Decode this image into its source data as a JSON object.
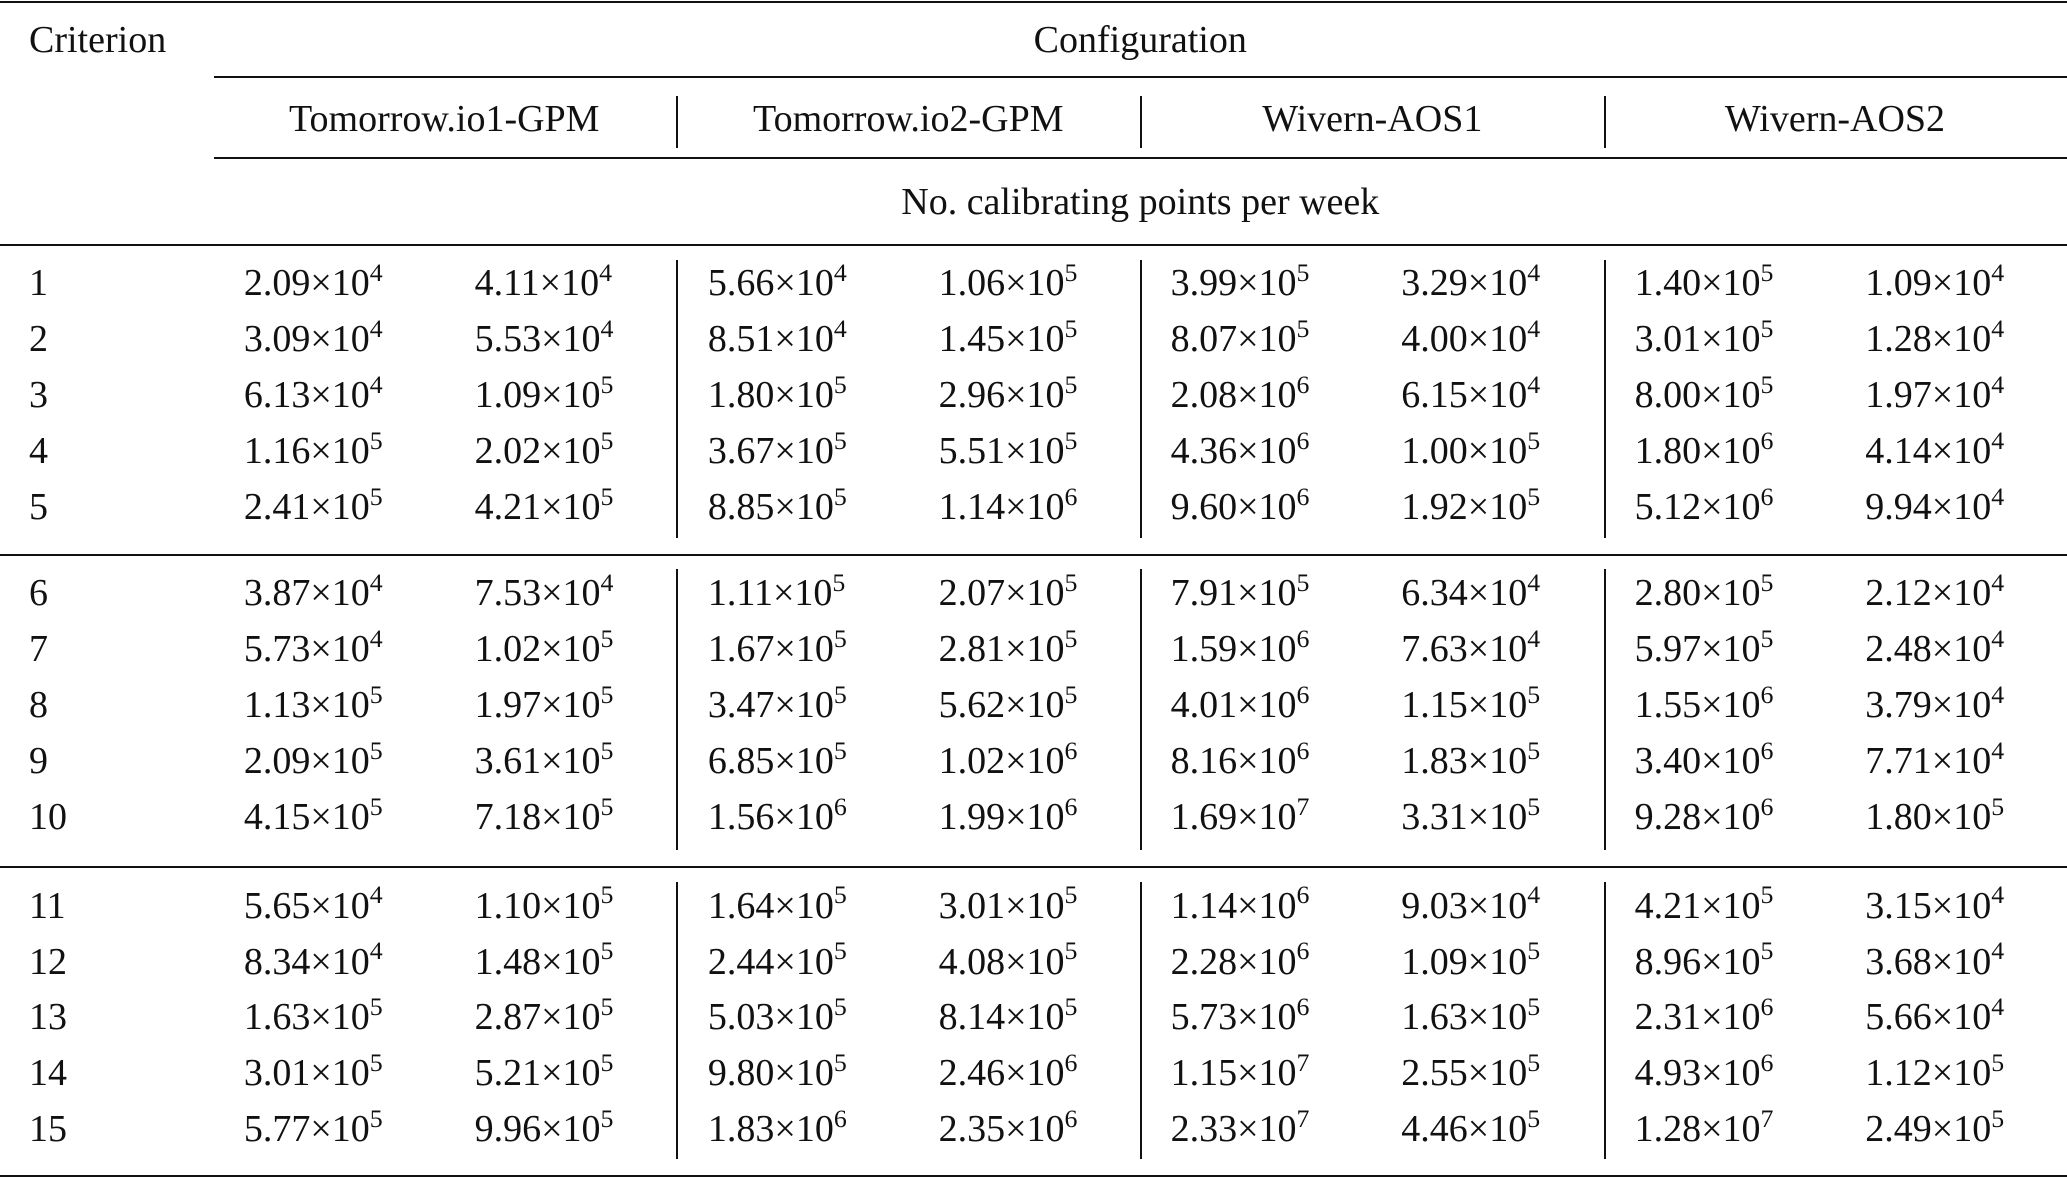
{
  "header": {
    "criterion_label": "Criterion",
    "configuration_label": "Configuration",
    "configurations": [
      "Tomorrow.io1-GPM",
      "Tomorrow.io2-GPM",
      "Wivern-AOS1",
      "Wivern-AOS2"
    ],
    "subheader": "No. calibrating points per week"
  },
  "table": {
    "multiplier": "×10",
    "groups": [
      {
        "rows": [
          {
            "criterion": "1",
            "cells": [
              [
                "2.09",
                "4"
              ],
              [
                "4.11",
                "4"
              ],
              [
                "5.66",
                "4"
              ],
              [
                "1.06",
                "5"
              ],
              [
                "3.99",
                "5"
              ],
              [
                "3.29",
                "4"
              ],
              [
                "1.40",
                "5"
              ],
              [
                "1.09",
                "4"
              ]
            ]
          },
          {
            "criterion": "2",
            "cells": [
              [
                "3.09",
                "4"
              ],
              [
                "5.53",
                "4"
              ],
              [
                "8.51",
                "4"
              ],
              [
                "1.45",
                "5"
              ],
              [
                "8.07",
                "5"
              ],
              [
                "4.00",
                "4"
              ],
              [
                "3.01",
                "5"
              ],
              [
                "1.28",
                "4"
              ]
            ]
          },
          {
            "criterion": "3",
            "cells": [
              [
                "6.13",
                "4"
              ],
              [
                "1.09",
                "5"
              ],
              [
                "1.80",
                "5"
              ],
              [
                "2.96",
                "5"
              ],
              [
                "2.08",
                "6"
              ],
              [
                "6.15",
                "4"
              ],
              [
                "8.00",
                "5"
              ],
              [
                "1.97",
                "4"
              ]
            ]
          },
          {
            "criterion": "4",
            "cells": [
              [
                "1.16",
                "5"
              ],
              [
                "2.02",
                "5"
              ],
              [
                "3.67",
                "5"
              ],
              [
                "5.51",
                "5"
              ],
              [
                "4.36",
                "6"
              ],
              [
                "1.00",
                "5"
              ],
              [
                "1.80",
                "6"
              ],
              [
                "4.14",
                "4"
              ]
            ]
          },
          {
            "criterion": "5",
            "cells": [
              [
                "2.41",
                "5"
              ],
              [
                "4.21",
                "5"
              ],
              [
                "8.85",
                "5"
              ],
              [
                "1.14",
                "6"
              ],
              [
                "9.60",
                "6"
              ],
              [
                "1.92",
                "5"
              ],
              [
                "5.12",
                "6"
              ],
              [
                "9.94",
                "4"
              ]
            ]
          }
        ]
      },
      {
        "rows": [
          {
            "criterion": "6",
            "cells": [
              [
                "3.87",
                "4"
              ],
              [
                "7.53",
                "4"
              ],
              [
                "1.11",
                "5"
              ],
              [
                "2.07",
                "5"
              ],
              [
                "7.91",
                "5"
              ],
              [
                "6.34",
                "4"
              ],
              [
                "2.80",
                "5"
              ],
              [
                "2.12",
                "4"
              ]
            ]
          },
          {
            "criterion": "7",
            "cells": [
              [
                "5.73",
                "4"
              ],
              [
                "1.02",
                "5"
              ],
              [
                "1.67",
                "5"
              ],
              [
                "2.81",
                "5"
              ],
              [
                "1.59",
                "6"
              ],
              [
                "7.63",
                "4"
              ],
              [
                "5.97",
                "5"
              ],
              [
                "2.48",
                "4"
              ]
            ]
          },
          {
            "criterion": "8",
            "cells": [
              [
                "1.13",
                "5"
              ],
              [
                "1.97",
                "5"
              ],
              [
                "3.47",
                "5"
              ],
              [
                "5.62",
                "5"
              ],
              [
                "4.01",
                "6"
              ],
              [
                "1.15",
                "5"
              ],
              [
                "1.55",
                "6"
              ],
              [
                "3.79",
                "4"
              ]
            ]
          },
          {
            "criterion": "9",
            "cells": [
              [
                "2.09",
                "5"
              ],
              [
                "3.61",
                "5"
              ],
              [
                "6.85",
                "5"
              ],
              [
                "1.02",
                "6"
              ],
              [
                "8.16",
                "6"
              ],
              [
                "1.83",
                "5"
              ],
              [
                "3.40",
                "6"
              ],
              [
                "7.71",
                "4"
              ]
            ]
          },
          {
            "criterion": "10",
            "cells": [
              [
                "4.15",
                "5"
              ],
              [
                "7.18",
                "5"
              ],
              [
                "1.56",
                "6"
              ],
              [
                "1.99",
                "6"
              ],
              [
                "1.69",
                "7"
              ],
              [
                "3.31",
                "5"
              ],
              [
                "9.28",
                "6"
              ],
              [
                "1.80",
                "5"
              ]
            ]
          }
        ]
      },
      {
        "rows": [
          {
            "criterion": "11",
            "cells": [
              [
                "5.65",
                "4"
              ],
              [
                "1.10",
                "5"
              ],
              [
                "1.64",
                "5"
              ],
              [
                "3.01",
                "5"
              ],
              [
                "1.14",
                "6"
              ],
              [
                "9.03",
                "4"
              ],
              [
                "4.21",
                "5"
              ],
              [
                "3.15",
                "4"
              ]
            ]
          },
          {
            "criterion": "12",
            "cells": [
              [
                "8.34",
                "4"
              ],
              [
                "1.48",
                "5"
              ],
              [
                "2.44",
                "5"
              ],
              [
                "4.08",
                "5"
              ],
              [
                "2.28",
                "6"
              ],
              [
                "1.09",
                "5"
              ],
              [
                "8.96",
                "5"
              ],
              [
                "3.68",
                "4"
              ]
            ]
          },
          {
            "criterion": "13",
            "cells": [
              [
                "1.63",
                "5"
              ],
              [
                "2.87",
                "5"
              ],
              [
                "5.03",
                "5"
              ],
              [
                "8.14",
                "5"
              ],
              [
                "5.73",
                "6"
              ],
              [
                "1.63",
                "5"
              ],
              [
                "2.31",
                "6"
              ],
              [
                "5.66",
                "4"
              ]
            ]
          },
          {
            "criterion": "14",
            "cells": [
              [
                "3.01",
                "5"
              ],
              [
                "5.21",
                "5"
              ],
              [
                "9.80",
                "5"
              ],
              [
                "2.46",
                "6"
              ],
              [
                "1.15",
                "7"
              ],
              [
                "2.55",
                "5"
              ],
              [
                "4.93",
                "6"
              ],
              [
                "1.12",
                "5"
              ]
            ]
          },
          {
            "criterion": "15",
            "cells": [
              [
                "5.77",
                "5"
              ],
              [
                "9.96",
                "5"
              ],
              [
                "1.83",
                "6"
              ],
              [
                "2.35",
                "6"
              ],
              [
                "2.33",
                "7"
              ],
              [
                "4.46",
                "5"
              ],
              [
                "1.28",
                "7"
              ],
              [
                "2.49",
                "5"
              ]
            ]
          }
        ]
      }
    ]
  }
}
